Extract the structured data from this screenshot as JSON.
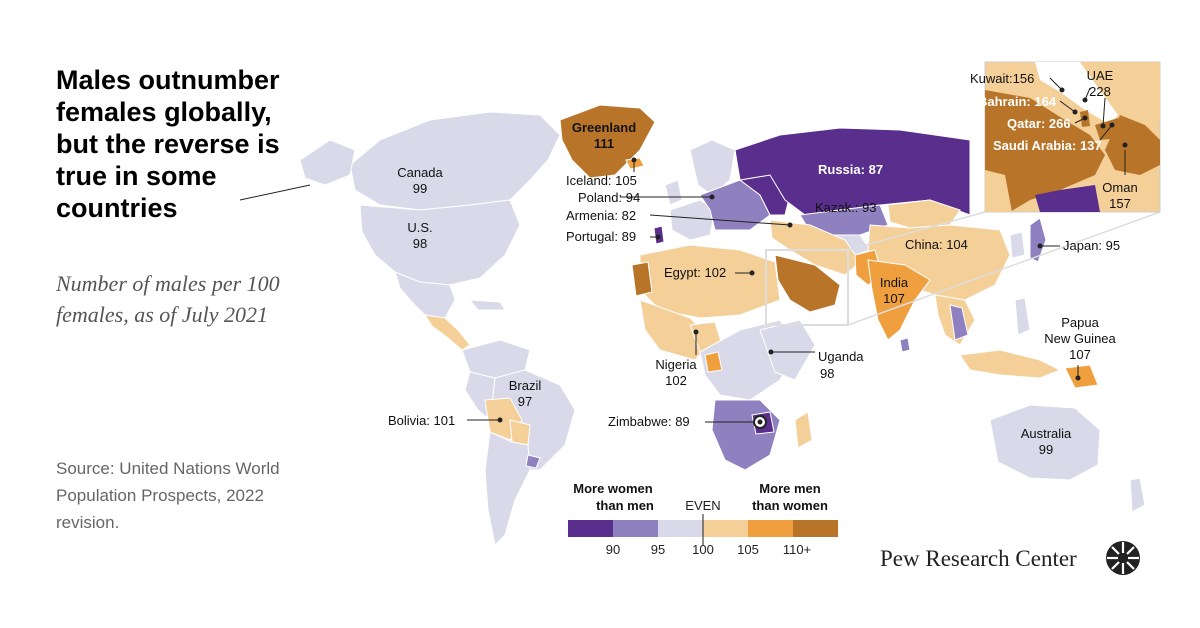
{
  "header": {
    "title": "Males outnumber females globally, but the reverse is true in some countries",
    "subtitle": "Number of males per 100 females, as of July 2021",
    "source": "Source: United Nations World Population Prospects, 2022 revision.",
    "brand": "Pew Research Center"
  },
  "colors": {
    "c_lt90": "#5a2e8c",
    "c_90_95": "#8f80bf",
    "c_95_100": "#d9d9ea",
    "c_100_105": "#f4cf98",
    "c_105_110": "#ef9f3d",
    "c_110p": "#b8752a",
    "ocean": "#ffffff",
    "border": "#ffffff"
  },
  "legend": {
    "left_label_1": "More women",
    "left_label_2": "than men",
    "even_label": "EVEN",
    "right_label_1": "More men",
    "right_label_2": "than women",
    "ticks": [
      "90",
      "95",
      "100",
      "105",
      "110+"
    ]
  },
  "countries": {
    "greenland": {
      "name": "Greenland",
      "value": "111"
    },
    "canada": {
      "name": "Canada",
      "value": "99"
    },
    "us": {
      "name": "U.S.",
      "value": "98"
    },
    "iceland": {
      "name": "Iceland:",
      "value": "105"
    },
    "poland": {
      "name": "Poland:",
      "value": "94"
    },
    "armenia": {
      "name": "Armenia:",
      "value": "82"
    },
    "portugal": {
      "name": "Portugal:",
      "value": "89"
    },
    "russia": {
      "name": "Russia:",
      "value": "87"
    },
    "kazak": {
      "name": "Kazak.:",
      "value": "93"
    },
    "china": {
      "name": "China:",
      "value": "104"
    },
    "japan": {
      "name": "Japan:",
      "value": "95"
    },
    "egypt": {
      "name": "Egypt:",
      "value": "102"
    },
    "india": {
      "name": "India",
      "value": "107"
    },
    "nigeria": {
      "name": "Nigeria",
      "value": "102"
    },
    "uganda": {
      "name": "Uganda",
      "value": "98"
    },
    "zimbabwe": {
      "name": "Zimbabwe:",
      "value": "89"
    },
    "brazil": {
      "name": "Brazil",
      "value": "97"
    },
    "bolivia": {
      "name": "Bolivia:",
      "value": "101"
    },
    "australia": {
      "name": "Australia",
      "value": "99"
    },
    "png_1": {
      "name": "Papua"
    },
    "png_2": {
      "name": "New Guinea",
      "value": "107"
    },
    "kuwait": {
      "name": "Kuwait:",
      "value": "156"
    },
    "uae": {
      "name": "UAE",
      "value": "228"
    },
    "bahrain": {
      "name": "Bahrain:",
      "value": "164"
    },
    "qatar": {
      "name": "Qatar:",
      "value": "266"
    },
    "saudi": {
      "name": "Saudi Arabia:",
      "value": "137"
    },
    "oman": {
      "name": "Oman",
      "value": "157"
    }
  }
}
